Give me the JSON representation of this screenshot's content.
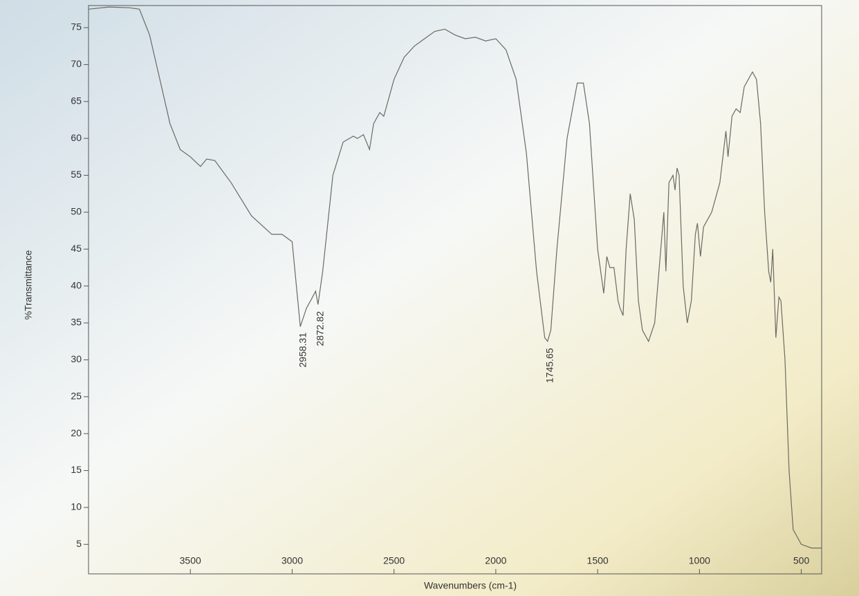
{
  "chart_data": {
    "type": "line",
    "y_label": "%Transmittance",
    "x_label": "Wavenumbers (cm-1)",
    "color": "#6a6a62",
    "xlim": [
      4000,
      400
    ],
    "xticks": [
      3500,
      3000,
      2500,
      2000,
      1500,
      1000,
      500
    ],
    "ylim": [
      1,
      78
    ],
    "yticks": [
      5,
      10,
      15,
      20,
      25,
      30,
      35,
      40,
      45,
      50,
      55,
      60,
      65,
      70,
      75
    ],
    "x": [
      4000,
      3900,
      3800,
      3750,
      3700,
      3650,
      3600,
      3550,
      3500,
      3450,
      3420,
      3380,
      3300,
      3200,
      3100,
      3050,
      3000,
      2960,
      2930,
      2900,
      2885,
      2873,
      2850,
      2800,
      2750,
      2700,
      2680,
      2650,
      2620,
      2600,
      2570,
      2550,
      2500,
      2450,
      2400,
      2350,
      2300,
      2250,
      2200,
      2150,
      2100,
      2050,
      2000,
      1950,
      1900,
      1850,
      1800,
      1760,
      1746,
      1730,
      1700,
      1650,
      1600,
      1570,
      1540,
      1500,
      1470,
      1455,
      1440,
      1420,
      1400,
      1390,
      1375,
      1360,
      1340,
      1320,
      1300,
      1280,
      1250,
      1220,
      1190,
      1175,
      1165,
      1150,
      1130,
      1120,
      1110,
      1100,
      1080,
      1060,
      1040,
      1020,
      1010,
      995,
      980,
      960,
      940,
      900,
      870,
      860,
      840,
      820,
      800,
      780,
      740,
      720,
      700,
      680,
      660,
      650,
      640,
      625,
      610,
      600,
      580,
      560,
      540,
      500,
      450,
      400
    ],
    "values": [
      77.5,
      77.8,
      77.7,
      77.5,
      74,
      68,
      62,
      58.5,
      57.5,
      56.2,
      57.2,
      57,
      54,
      49.5,
      47,
      47,
      46,
      34.5,
      37,
      38.5,
      39.3,
      37.5,
      42,
      55,
      59.5,
      60.3,
      60,
      60.5,
      58.5,
      62,
      63.5,
      63,
      68,
      71,
      72.5,
      73.5,
      74.5,
      74.8,
      74,
      73.5,
      73.7,
      73.2,
      73.5,
      72,
      68,
      58,
      42,
      33,
      32.5,
      34,
      45,
      60,
      67.5,
      67.5,
      62,
      45,
      39,
      44,
      42.5,
      42.5,
      38,
      37,
      36,
      45,
      52.5,
      49,
      38,
      34,
      32.5,
      35,
      45,
      50,
      42,
      54,
      55,
      53,
      56,
      55,
      40,
      35,
      38,
      47,
      48.5,
      44,
      48,
      49,
      50,
      54,
      61,
      57.5,
      63,
      64,
      63.5,
      67,
      69,
      68,
      62,
      50,
      42,
      40.5,
      45,
      33,
      38.5,
      38,
      30,
      15,
      7,
      5,
      4.5,
      4.5
    ],
    "peak_labels": [
      2958.31,
      2872.82,
      1745.65
    ]
  }
}
